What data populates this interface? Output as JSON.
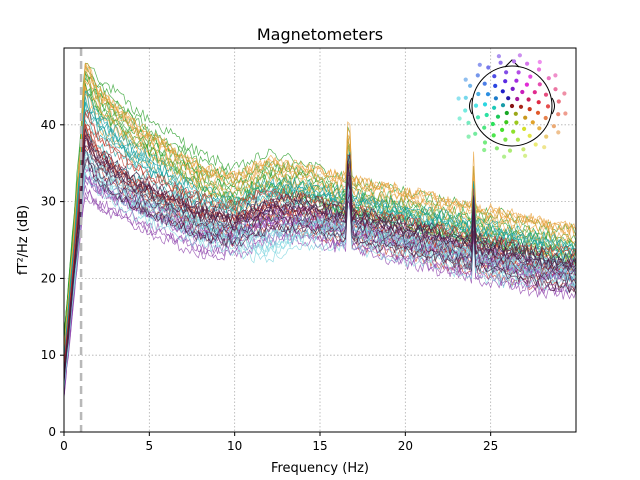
{
  "chart_data": {
    "type": "line",
    "title": "Magnetometers",
    "xlabel": "Frequency (Hz)",
    "ylabel": "fT²/Hz (dB)",
    "xlim": [
      0,
      30
    ],
    "ylim": [
      0,
      50
    ],
    "xticks": [
      "0",
      "5",
      "10",
      "15",
      "20",
      "25"
    ],
    "yticks": [
      "0",
      "10",
      "20",
      "30",
      "40"
    ],
    "grid": true,
    "highpass_marker_hz": 1.0,
    "sensor_inset": "top-right",
    "series_profiles": [
      {
        "name": "",
        "color": "#2ca02c",
        "values_at": {
          "x": [
            0,
            1,
            1.2,
            2,
            4,
            6,
            8,
            10,
            12,
            14,
            16,
            18,
            20,
            22,
            24,
            26,
            28,
            30
          ],
          "y": [
            12,
            38,
            47,
            44,
            40,
            37,
            34,
            32,
            34,
            33,
            31,
            30,
            29,
            28,
            27,
            26,
            25,
            24
          ]
        }
      },
      {
        "name": "",
        "color": "#e8a33d",
        "values_at": {
          "x": [
            0,
            1,
            1.2,
            2,
            4,
            6,
            8,
            10,
            12,
            14,
            16,
            18,
            20,
            22,
            24,
            26,
            28,
            30
          ],
          "y": [
            10,
            36,
            46,
            42,
            38,
            35,
            32,
            31,
            33,
            32,
            31,
            30,
            29,
            28,
            27,
            26,
            25,
            24
          ]
        }
      },
      {
        "name": "",
        "color": "#17a2a2",
        "values_at": {
          "x": [
            0,
            1,
            1.2,
            2,
            4,
            6,
            8,
            10,
            12,
            14,
            16,
            18,
            20,
            22,
            24,
            26,
            28,
            30
          ],
          "y": [
            9,
            34,
            42,
            39,
            35,
            32,
            29,
            28,
            30,
            30,
            29,
            28,
            27,
            26,
            25,
            24,
            23,
            22
          ]
        }
      },
      {
        "name": "",
        "color": "#c0392b",
        "values_at": {
          "x": [
            0,
            1,
            1.2,
            2,
            4,
            6,
            8,
            10,
            12,
            14,
            16,
            18,
            20,
            22,
            24,
            26,
            28,
            30
          ],
          "y": [
            8,
            32,
            40,
            36,
            32,
            30,
            28,
            27,
            29,
            28,
            27,
            26,
            25,
            24,
            23,
            22,
            21,
            21
          ]
        }
      },
      {
        "name": "",
        "color": "#8e44ad",
        "values_at": {
          "x": [
            0,
            1,
            1.2,
            2,
            4,
            6,
            8,
            10,
            12,
            14,
            16,
            18,
            20,
            22,
            24,
            26,
            28,
            30
          ],
          "y": [
            5,
            28,
            33,
            31,
            29,
            27,
            25,
            25,
            27,
            27,
            26,
            25,
            24,
            23,
            22,
            21,
            20,
            20
          ]
        }
      },
      {
        "name": "",
        "color": "#7fd6e0",
        "values_at": {
          "x": [
            0,
            1,
            1.2,
            2,
            4,
            6,
            8,
            10,
            12,
            14,
            16,
            18,
            20,
            22,
            24,
            26,
            28,
            30
          ],
          "y": [
            6,
            29,
            35,
            33,
            30,
            28,
            26,
            25,
            24,
            26,
            26,
            25,
            24,
            23,
            22,
            21,
            21,
            20
          ]
        }
      },
      {
        "name": "",
        "color": "#4a1942",
        "values_at": {
          "x": [
            0,
            1,
            1.2,
            2,
            4,
            6,
            8,
            10,
            12,
            14,
            16,
            18,
            20,
            22,
            24,
            26,
            28,
            30
          ],
          "y": [
            7,
            30,
            37,
            34,
            31,
            29,
            27,
            26,
            28,
            28,
            27,
            26,
            25,
            24,
            23,
            22,
            21,
            20
          ]
        }
      }
    ],
    "peaks_hz": [
      16.7,
      24.0
    ]
  }
}
